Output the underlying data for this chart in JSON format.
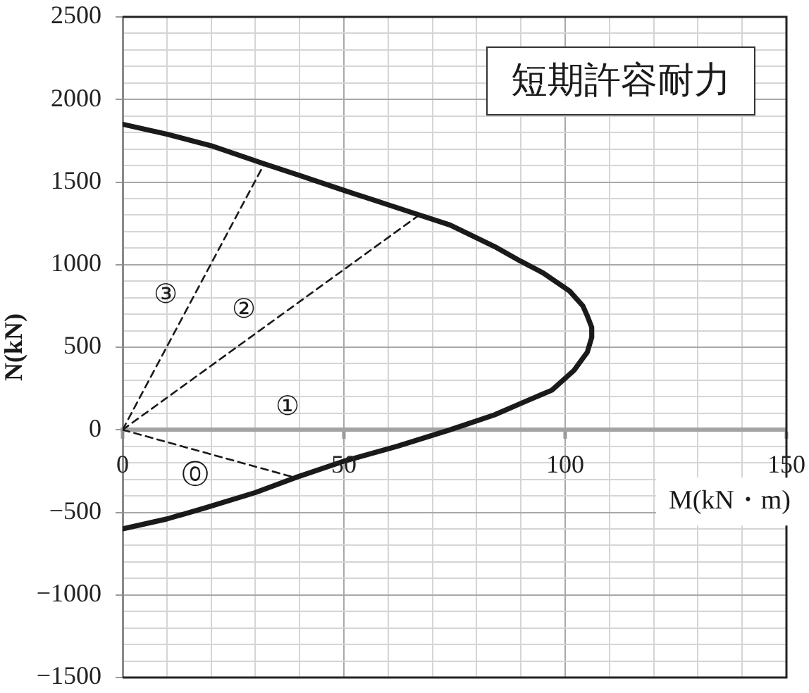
{
  "chart_data": {
    "type": "line",
    "title": "短期許容耐力",
    "xlabel": "M(kN・m)",
    "ylabel": "N(kN)",
    "xlim": [
      0,
      150
    ],
    "ylim": [
      -1500,
      2500
    ],
    "xticks": [
      0,
      {
        "value": 10,
        "label": null
      },
      {
        "value": 20,
        "label": null
      },
      {
        "value": 30,
        "label": null
      },
      {
        "value": 40,
        "label": null
      },
      50,
      {
        "value": 60,
        "label": null
      },
      {
        "value": 70,
        "label": null
      },
      {
        "value": 80,
        "label": null
      },
      {
        "value": 90,
        "label": null
      },
      100,
      {
        "value": 110,
        "label": null
      },
      {
        "value": 120,
        "label": null
      },
      {
        "value": 130,
        "label": null
      },
      {
        "value": 140,
        "label": null
      },
      150
    ],
    "yticks": [
      {
        "value": -1500,
        "label": "−1500"
      },
      {
        "value": -1400,
        "label": null
      },
      {
        "value": -1300,
        "label": null
      },
      {
        "value": -1200,
        "label": null
      },
      {
        "value": -1100,
        "label": null
      },
      {
        "value": -1000,
        "label": "−1000"
      },
      {
        "value": -900,
        "label": null
      },
      {
        "value": -800,
        "label": null
      },
      {
        "value": -700,
        "label": null
      },
      {
        "value": -600,
        "label": null
      },
      {
        "value": -500,
        "label": "−500"
      },
      {
        "value": -400,
        "label": null
      },
      {
        "value": -300,
        "label": null
      },
      {
        "value": -200,
        "label": null
      },
      {
        "value": -100,
        "label": null
      },
      0,
      {
        "value": 100,
        "label": null
      },
      {
        "value": 200,
        "label": null
      },
      {
        "value": 300,
        "label": null
      },
      {
        "value": 400,
        "label": null
      },
      500,
      {
        "value": 600,
        "label": null
      },
      {
        "value": 700,
        "label": null
      },
      {
        "value": 800,
        "label": null
      },
      {
        "value": 900,
        "label": null
      },
      1000,
      {
        "value": 1100,
        "label": null
      },
      {
        "value": 1200,
        "label": null
      },
      {
        "value": 1300,
        "label": null
      },
      {
        "value": 1400,
        "label": null
      },
      1500,
      {
        "value": 1600,
        "label": null
      },
      {
        "value": 1700,
        "label": null
      },
      {
        "value": 1800,
        "label": null
      },
      {
        "value": 1900,
        "label": null
      },
      2000,
      {
        "value": 2100,
        "label": null
      },
      {
        "value": 2200,
        "label": null
      },
      {
        "value": 2300,
        "label": null
      },
      {
        "value": 2400,
        "label": null
      },
      2500
    ],
    "grid": true,
    "series": [
      {
        "color": "#1a1a1a",
        "line_style": "solid",
        "x": [
          0,
          10,
          20,
          32,
          40,
          50,
          58,
          66,
          74,
          84,
          90,
          95,
          101,
          104,
          105,
          106,
          106,
          105,
          102,
          97,
          90,
          84,
          74,
          62,
          50,
          39,
          30,
          19,
          10,
          0
        ],
        "values": [
          1850,
          1790,
          1720,
          1610,
          1540,
          1450,
          1380,
          1310,
          1240,
          1110,
          1020,
          950,
          840,
          750,
          690,
          620,
          560,
          470,
          360,
          240,
          160,
          90,
          0,
          -100,
          -190,
          -290,
          -380,
          -470,
          -540,
          -600
        ]
      },
      {
        "name": "⓪",
        "color": "#1a1a1a",
        "line_style": "dashed",
        "x": [
          0,
          39
        ],
        "values": [
          0,
          -290
        ]
      },
      {
        "name": "②",
        "color": "#1a1a1a",
        "line_style": "dashed",
        "x": [
          0,
          67
        ],
        "values": [
          0,
          1300
        ]
      },
      {
        "name": "③",
        "color": "#1a1a1a",
        "line_style": "dashed",
        "x": [
          0,
          32
        ],
        "values": [
          0,
          1610
        ]
      }
    ],
    "annotations": [
      "①"
    ]
  }
}
